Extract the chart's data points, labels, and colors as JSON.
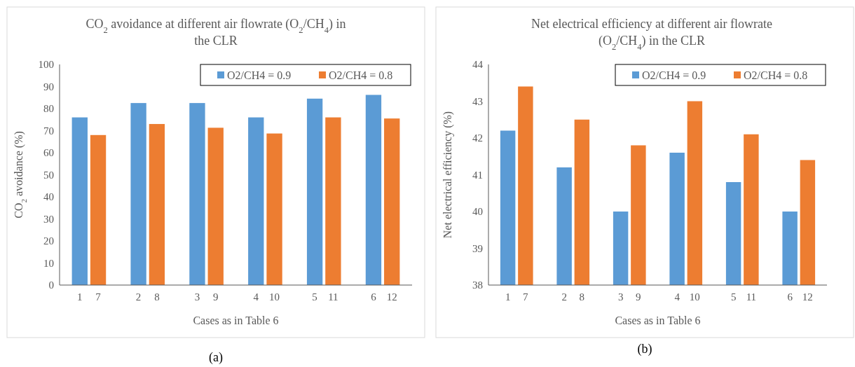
{
  "chart_data": [
    {
      "type": "bar",
      "title": "CO$_{2}$ avoidance at different air flowrate (O$_{2}$/CH$_{4}$) in the CLR",
      "xlabel": "Cases as in Table 6",
      "ylabel": "CO$_{2}$ avoidance (%)",
      "categories": [
        "1",
        "7",
        "2",
        "8",
        "3",
        "9",
        "4",
        "10",
        "5",
        "11",
        "6",
        "12"
      ],
      "series": [
        {
          "name": "O2/CH4 = 0.9",
          "color": "#5b9bd5",
          "values": [
            76,
            null,
            82.5,
            null,
            82.5,
            null,
            76,
            null,
            84.5,
            null,
            86.2,
            null
          ]
        },
        {
          "name": "O2/CH4 = 0.8",
          "color": "#ed7d31",
          "values": [
            null,
            68,
            null,
            73,
            null,
            71.3,
            null,
            68.7,
            null,
            76,
            null,
            75.5
          ]
        }
      ],
      "ylim": [
        0,
        100
      ],
      "yticks": [
        0,
        10,
        20,
        30,
        40,
        50,
        60,
        70,
        80,
        90,
        100
      ],
      "grid": false,
      "legend": "top right",
      "annotations": [
        "(a)"
      ]
    },
    {
      "type": "bar",
      "title": "Net electrical efficiency at different air flowrate (O$_{2}$/CH$_{4}$) in the CLR",
      "xlabel": "Cases as in Table 6",
      "ylabel": "Net electrical efficiency (%)",
      "categories": [
        "1",
        "7",
        "2",
        "8",
        "3",
        "9",
        "4",
        "10",
        "5",
        "11",
        "6",
        "12"
      ],
      "series": [
        {
          "name": "O2/CH4 = 0.9",
          "color": "#5b9bd5",
          "values": [
            42.2,
            null,
            41.2,
            null,
            40,
            null,
            41.6,
            null,
            40.8,
            null,
            40,
            null
          ]
        },
        {
          "name": "O2/CH4 = 0.8",
          "color": "#ed7d31",
          "values": [
            null,
            43.4,
            null,
            42.5,
            null,
            41.8,
            null,
            43,
            null,
            42.1,
            null,
            41.4
          ]
        }
      ],
      "ylim": [
        38,
        44
      ],
      "yticks": [
        38,
        39,
        40,
        41,
        42,
        43,
        44
      ],
      "grid": false,
      "legend": "top right",
      "annotations": [
        "(b)"
      ]
    }
  ]
}
